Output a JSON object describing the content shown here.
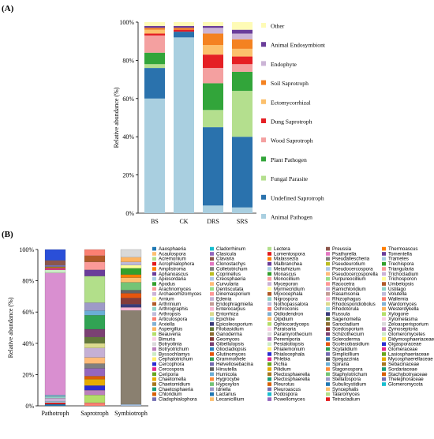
{
  "panels": [
    {
      "label": "(A)",
      "type": "stacked_bar",
      "ylabel": "Relative abundance (%)",
      "yticks": [
        "0%",
        "20%",
        "40%",
        "60%",
        "80%",
        "100%"
      ],
      "categories": [
        "BS",
        "CK",
        "DRS",
        "SRS"
      ],
      "series": [
        {
          "name": "Animal Pathogen",
          "color": "#a9cfe0",
          "values": [
            60,
            92,
            4,
            3
          ]
        },
        {
          "name": "Undefined Saprotroph",
          "color": "#2a72ad",
          "values": [
            16,
            3,
            41,
            37
          ]
        },
        {
          "name": "Fungal Parasite",
          "color": "#b4df8e",
          "values": [
            2,
            0,
            9,
            24
          ]
        },
        {
          "name": "Plant Pathogen",
          "color": "#32a53a",
          "values": [
            6,
            0,
            14,
            10
          ]
        },
        {
          "name": "Wood Saprotroph",
          "color": "#f4a0a0",
          "values": [
            9,
            0,
            8,
            4
          ]
        },
        {
          "name": "Dung Saprotroph",
          "color": "#e51f24",
          "values": [
            1,
            1,
            7,
            4
          ]
        },
        {
          "name": "Ectomycorrhizal",
          "color": "#fcc06c",
          "values": [
            2,
            0,
            5,
            4
          ]
        },
        {
          "name": "Soil Saprotroph",
          "color": "#f48221",
          "values": [
            1,
            1,
            6,
            5
          ]
        },
        {
          "name": "Endophyte",
          "color": "#cbb4d6",
          "values": [
            0,
            0,
            3,
            3
          ]
        },
        {
          "name": "Animal Endosymbiont",
          "color": "#6a3d9a",
          "values": [
            1,
            1,
            1,
            2
          ]
        },
        {
          "name": "Other",
          "color": "#fefbb6",
          "values": [
            2,
            2,
            2,
            4
          ]
        }
      ]
    },
    {
      "label": "(B)",
      "type": "stacked_bar",
      "ylabel": "Relative abundance (%)",
      "yticks": [
        "0%",
        "20%",
        "40%",
        "60%",
        "80%",
        "100%"
      ],
      "categories": [
        "Pathotroph",
        "Saprotroph",
        "Symbiotroph"
      ],
      "palette": [
        "#1f78b4",
        "#fdbf6f",
        "#b2df8a",
        "#e31a1c",
        "#ff7f00",
        "#6a3d9a",
        "#a6cee3",
        "#33a02c",
        "#fb9a99",
        "#cab2d6",
        "#ffff99",
        "#b15928",
        "#8dd3c7",
        "#bebada",
        "#fb8072",
        "#80b1d3",
        "#fdb462",
        "#b3de69",
        "#fccde5",
        "#d9d9d9",
        "#bc80bd",
        "#ccebc5",
        "#ffed6f",
        "#2b2bd0",
        "#e7298a",
        "#66a61e",
        "#e6ab02",
        "#a6761d",
        "#1b9e77",
        "#d95f02",
        "#7570b3",
        "#17becf",
        "#9467bd",
        "#8c564b",
        "#e377c2",
        "#7f7f7f",
        "#bcbd22",
        "#aec7e8",
        "#ffbb78",
        "#98df8a",
        "#ff9896",
        "#c5b0d5",
        "#c49c94",
        "#f7b6d2",
        "#dbdb8d",
        "#9edae5",
        "#393b79",
        "#637939",
        "#8c6d31",
        "#843c39",
        "#7b4173",
        "#3182bd",
        "#e6550d",
        "#31a354",
        "#756bb1",
        "#636363",
        "#6baed6",
        "#fd8d3c",
        "#74c476",
        "#9e9ac8"
      ],
      "legend": [
        "Aaosphaeria",
        "Acaulospora",
        "Acremonium",
        "Acrophialophora",
        "Amplistroma",
        "Aphanoascus",
        "Apiosordaria",
        "Apodus",
        "Arachnomyces",
        "Archaeorhizomyces",
        "Arnium",
        "Arthrinium",
        "Arthrographis",
        "Arthropsis",
        "Articulospora",
        "Arxiella",
        "Aspergillus",
        "Beauveria",
        "Bimuria",
        "Botryotinia",
        "Botryotrichum",
        "Byssochlamys",
        "Cephalotrichum",
        "Cercophora",
        "Cercospora",
        "Ceriporia",
        "Chaetomella",
        "Chaetomidium",
        "Chaetosphaeria",
        "Chloridium",
        "Cladophialophora",
        "Cladorrhinum",
        "Clasicula",
        "Clavaria",
        "Clonostachys",
        "Colletotrichum",
        "Coprinellus",
        "Creosphaeria",
        "Curvularia",
        "Dentiscutata",
        "Dinemasporium",
        "Edenia",
        "Endophragmiella",
        "Enterocarpus",
        "Entorrhiza",
        "Epichloe",
        "Epicoleosporium",
        "Filobasidium",
        "Ganoderma",
        "Geomyces",
        "Gibellulopsis",
        "Gliocladiopsis",
        "Glutinomyces",
        "Grammothele",
        "Helvellosebacina",
        "Hirsutella",
        "Humicola",
        "Hygrocybe",
        "Hypoxylon",
        "Idriella",
        "Lactarius",
        "Lecanicillium",
        "Lectera",
        "Lomentospora",
        "Malassezia",
        "Malbranchea",
        "Metarhizium",
        "Monascus",
        "Monocillium",
        "Myceporon",
        "Myrmecridium",
        "Myxocephala",
        "Nigrospora",
        "Nothopassalora",
        "Ochroconis",
        "Oidiodendron",
        "Olpidium",
        "Ophiocordyceps",
        "Paraisaria",
        "Paramyrothecium",
        "Peremiporia",
        "Pestalotiopsis",
        "Phialemonium",
        "Phialocephala",
        "Phlebia",
        "Pichia",
        "Pilidium",
        "Plectosphaerella",
        "Plectosphaerella",
        "Pleurotus",
        "Pleuroascus",
        "Podospora",
        "Powellomyces",
        "Preussia",
        "Psathyrella",
        "Pseudallescheria",
        "Pseudeurotium",
        "Pseudocercospora",
        "Pseudocercosporella",
        "Purpureocillium",
        "Racocetra",
        "Ramichloridium",
        "Rasamsonia",
        "Rhizophagus",
        "Rhodosporidiobolus",
        "Rhodotorula",
        "Russula",
        "Sagenomella",
        "Sarocladium",
        "Scedosporium",
        "Schizothecium",
        "Scleroderma",
        "Scolecobasidium",
        "Scytalidium",
        "Simplicillium",
        "Spegazzinia",
        "Spiraria",
        "Stagonospora",
        "Staphylotrichum",
        "Stellatospora",
        "Subulicystidium",
        "Syncephalis",
        "Talaromyces",
        "Tetracladium",
        "Thermoascus",
        "Tomentella",
        "Trametes",
        "Trechispora",
        "Triangularia",
        "Trichocladium",
        "Trichosporon",
        "Umbelopsis",
        "Ustilago",
        "Volutella",
        "Wallemia",
        "Wardomyces",
        "Westerdykella",
        "Xylogone",
        "Xylomelasma",
        "Zeloasperisporium",
        "Zymoseptoria",
        "Glomeromycetes",
        "Didymosphaeriaceae",
        "Gigasporaceae",
        "Glomeraceae",
        "Lasiosphaeriaceae",
        "Mycosphaerellaceae",
        "Sebacinaceae",
        "Sordariaceae",
        "Stachybotryaceae",
        "Thelephoraceae",
        "Glomeromycota"
      ]
    }
  ],
  "chart_data": [
    {
      "type": "bar",
      "stacked": true,
      "title": "(A)",
      "ylabel": "Relative abundance (%)",
      "xlabel": "",
      "ylim": [
        0,
        100
      ],
      "categories": [
        "BS",
        "CK",
        "DRS",
        "SRS"
      ],
      "series": [
        {
          "name": "Animal Pathogen",
          "values": [
            60,
            92,
            4,
            3
          ]
        },
        {
          "name": "Undefined Saprotroph",
          "values": [
            16,
            3,
            41,
            37
          ]
        },
        {
          "name": "Fungal Parasite",
          "values": [
            2,
            0,
            9,
            24
          ]
        },
        {
          "name": "Plant Pathogen",
          "values": [
            6,
            0,
            14,
            10
          ]
        },
        {
          "name": "Wood Saprotroph",
          "values": [
            9,
            0,
            8,
            4
          ]
        },
        {
          "name": "Dung Saprotroph",
          "values": [
            1,
            1,
            7,
            4
          ]
        },
        {
          "name": "Ectomycorrhizal",
          "values": [
            2,
            0,
            5,
            4
          ]
        },
        {
          "name": "Soil Saprotroph",
          "values": [
            1,
            1,
            6,
            5
          ]
        },
        {
          "name": "Endophyte",
          "values": [
            0,
            0,
            3,
            3
          ]
        },
        {
          "name": "Animal Endosymbiont",
          "values": [
            1,
            1,
            1,
            2
          ]
        },
        {
          "name": "Other",
          "values": [
            2,
            2,
            2,
            4
          ]
        }
      ],
      "legend_position": "right"
    },
    {
      "type": "bar",
      "stacked": true,
      "title": "(B)",
      "ylabel": "Relative abundance (%)",
      "xlabel": "",
      "ylim": [
        0,
        100
      ],
      "categories": [
        "Pathotroph",
        "Saprotroph",
        "Symbiotroph"
      ],
      "series_summary": [
        {
          "category": "Pathotroph",
          "values": [
            1,
            1,
            1,
            2,
            1,
            1,
            78,
            2,
            1,
            1,
            1,
            3,
            7
          ]
        },
        {
          "category": "Saprotroph",
          "values": [
            2,
            5,
            3,
            3,
            4,
            2,
            5,
            3,
            4,
            6,
            3,
            4,
            5,
            9,
            3,
            5,
            17,
            4,
            5,
            4,
            4
          ]
        },
        {
          "category": "Symbiotroph",
          "values": [
            1,
            60,
            2,
            2,
            4,
            3,
            2,
            5,
            3,
            2,
            4,
            2,
            2,
            3,
            5
          ]
        }
      ],
      "legend_position": "right"
    }
  ]
}
